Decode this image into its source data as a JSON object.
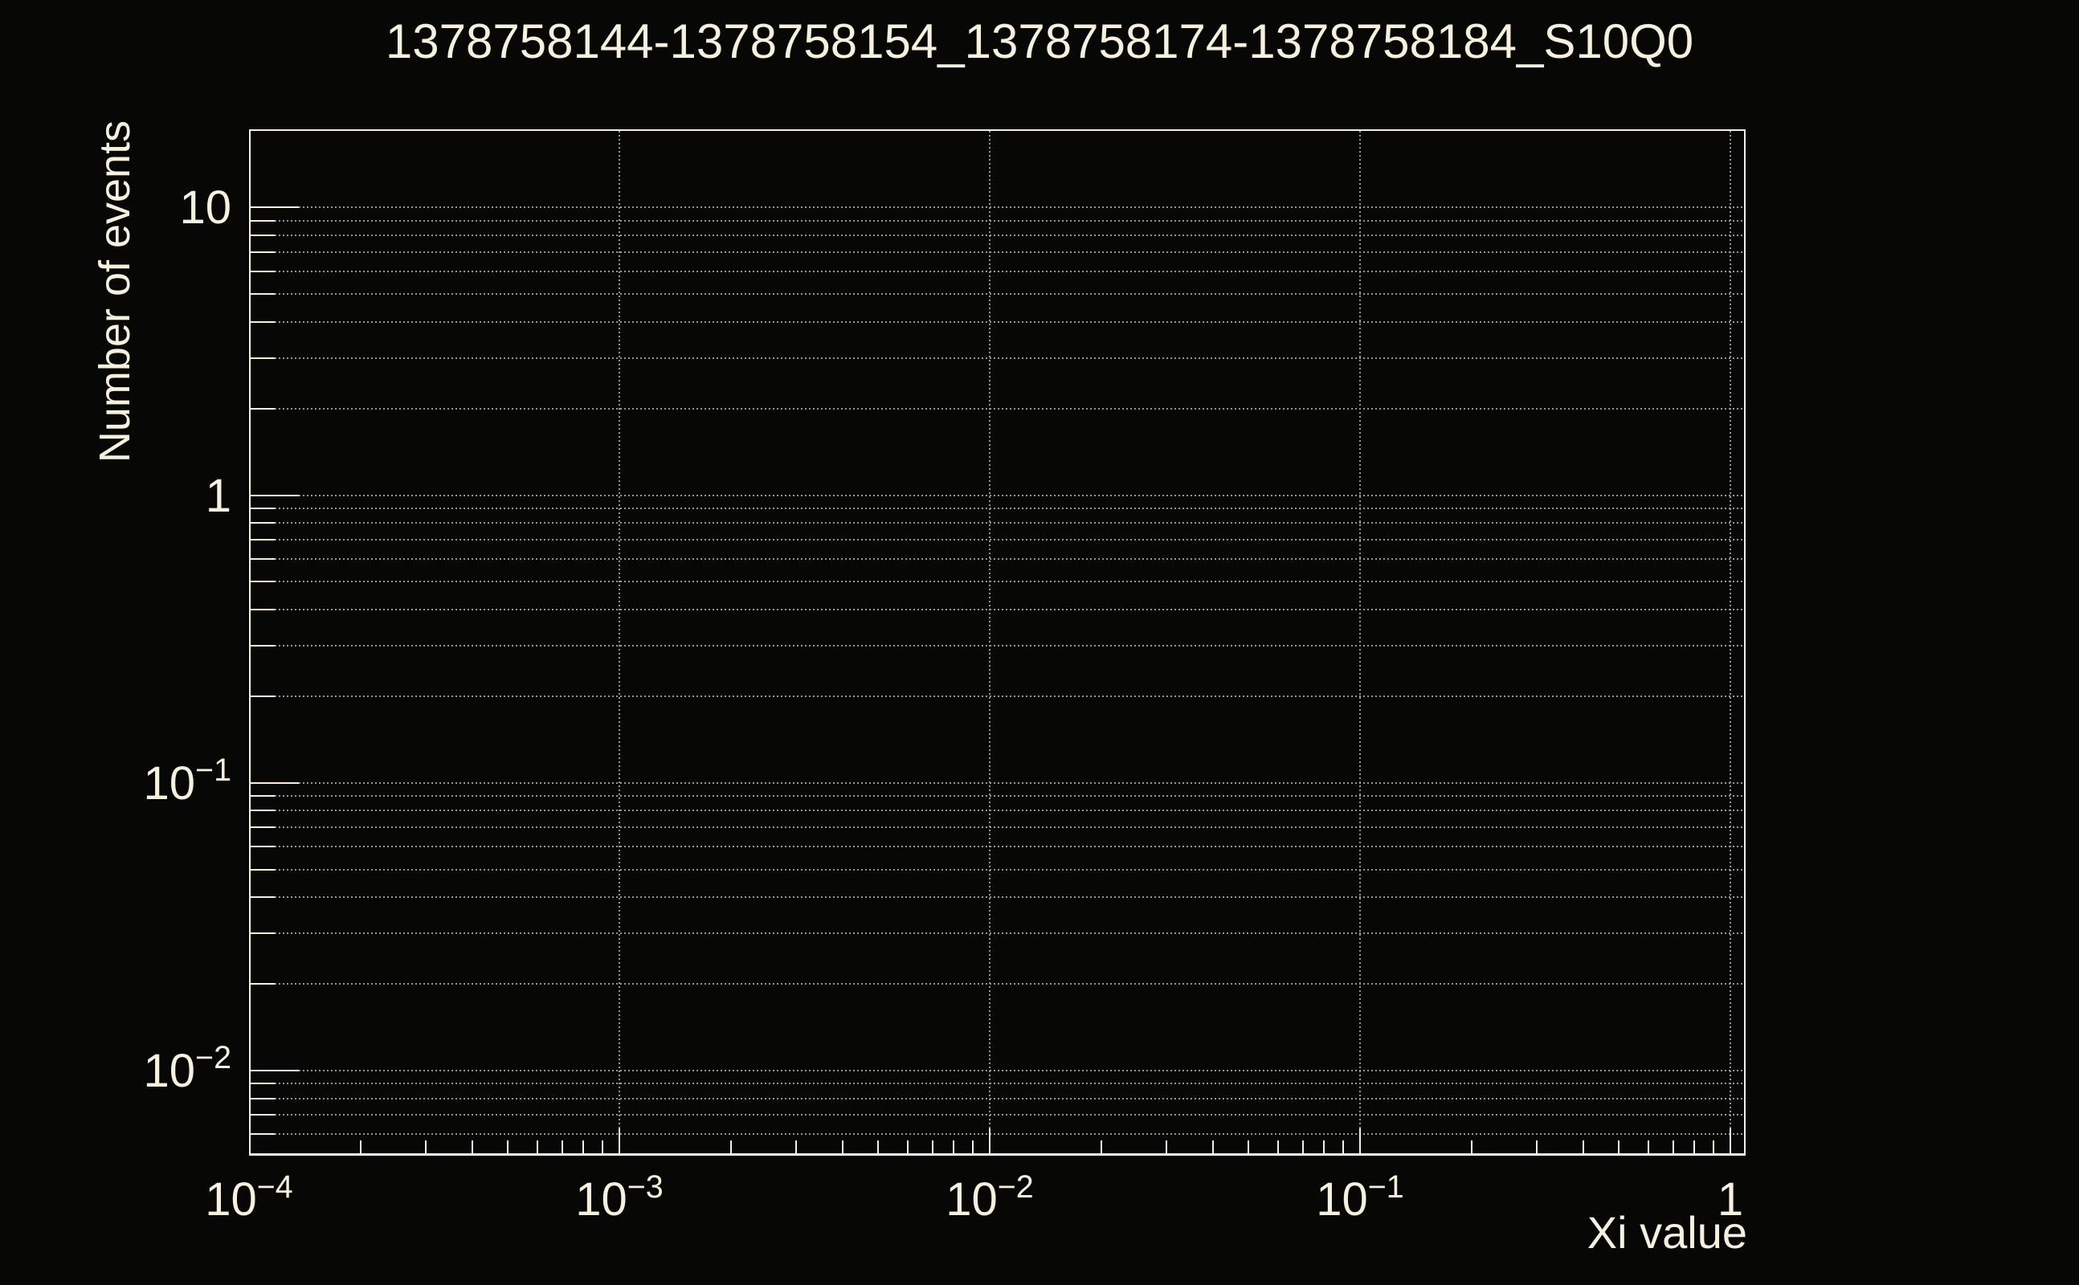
{
  "window": {
    "background": "#070706"
  },
  "colors": {
    "foreground": "#f6f1dd",
    "grid": "#969696",
    "background": "#070706"
  },
  "chart_data": {
    "type": "line",
    "title": "1378758144-1378758154_1378758174-1378758184_S10Q0",
    "xlabel": "Xi value",
    "ylabel": "Number of events",
    "xscale": "log",
    "yscale": "log",
    "xlim": [
      0.0001,
      1.1
    ],
    "ylim": [
      0.005,
      18.6
    ],
    "grid": {
      "style": "dotted",
      "horizontal_at": "every_log_tick",
      "vertical_at": "decade_ticks"
    },
    "legend": null,
    "series": [],
    "x_axis": {
      "tick_labels": [
        {
          "value": 0.0001,
          "base": "10",
          "exp": "−4"
        },
        {
          "value": 0.001,
          "base": "10",
          "exp": "−3"
        },
        {
          "value": 0.01,
          "base": "10",
          "exp": "−2"
        },
        {
          "value": 0.1,
          "base": "10",
          "exp": "−1"
        },
        {
          "value": 1,
          "base": "1",
          "exp": ""
        }
      ],
      "major_ticks": [
        0.001,
        0.01,
        0.1,
        1
      ],
      "minor_ticks": [
        0.0002,
        0.0003,
        0.0004,
        0.0005,
        0.0006,
        0.0007,
        0.0008,
        0.0009,
        0.002,
        0.003,
        0.004,
        0.005,
        0.006,
        0.007,
        0.008,
        0.009,
        0.02,
        0.03,
        0.04,
        0.05,
        0.06,
        0.07,
        0.08,
        0.09,
        0.2,
        0.3,
        0.4,
        0.5,
        0.6,
        0.7,
        0.8,
        0.9
      ]
    },
    "y_axis": {
      "tick_labels": [
        {
          "value": 10,
          "base": "10",
          "exp": ""
        },
        {
          "value": 1,
          "base": "1",
          "exp": ""
        },
        {
          "value": 0.1,
          "base": "10",
          "exp": "−1"
        },
        {
          "value": 0.01,
          "base": "10",
          "exp": "−2"
        }
      ],
      "major_ticks": [
        10,
        1,
        0.1,
        0.01
      ],
      "minor_ticks": [
        9,
        8,
        7,
        6,
        5,
        4,
        3,
        2,
        0.9,
        0.8,
        0.7,
        0.6,
        0.5,
        0.4,
        0.3,
        0.2,
        0.09,
        0.08,
        0.07,
        0.06,
        0.05,
        0.04,
        0.03,
        0.02,
        0.009,
        0.008,
        0.007,
        0.006
      ]
    }
  }
}
